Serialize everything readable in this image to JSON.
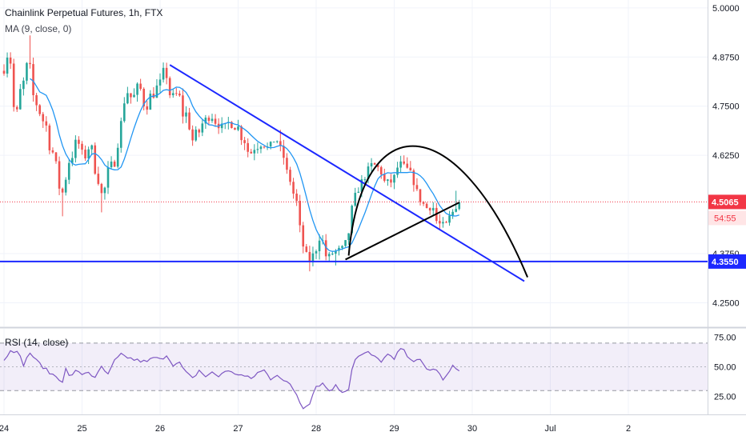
{
  "chart_data": {
    "type": "candlestick",
    "title": "Chainlink Perpetual Futures, 1h, FTX",
    "indicator_ma": "MA (9, close, 0)",
    "indicator_rsi": "RSI (14, close)",
    "price_axis": {
      "range": [
        4.19,
        5.02
      ],
      "ticks": [
        {
          "value": 5.0,
          "label": "5.0000"
        },
        {
          "value": 4.875,
          "label": "4.8750"
        },
        {
          "value": 4.75,
          "label": "4.7500"
        },
        {
          "value": 4.625,
          "label": "4.6250"
        },
        {
          "value": 4.375,
          "label": "4.3750"
        },
        {
          "value": 4.25,
          "label": "4.2500"
        }
      ]
    },
    "rsi_axis": {
      "range": [
        10,
        82
      ],
      "ticks": [
        {
          "value": 75,
          "label": "75.00"
        },
        {
          "value": 50,
          "label": "50.00"
        },
        {
          "value": 25,
          "label": "25.00"
        }
      ],
      "band": [
        30,
        70
      ]
    },
    "time_axis": {
      "ticks": [
        {
          "t": 0,
          "label": "24"
        },
        {
          "t": 24,
          "label": "25"
        },
        {
          "t": 48,
          "label": "26"
        },
        {
          "t": 72,
          "label": "27"
        },
        {
          "t": 96,
          "label": "28"
        },
        {
          "t": 120,
          "label": "29"
        },
        {
          "t": 144,
          "label": "30"
        },
        {
          "t": 168,
          "label": "Jul"
        },
        {
          "t": 192,
          "label": "2"
        }
      ]
    },
    "current_price": {
      "value": 4.5065,
      "label": "4.5065",
      "countdown": "54:55",
      "color": "#f23645"
    },
    "support_line": {
      "value": 4.355,
      "label": "4.3550",
      "color": "#1c28ff"
    },
    "anchors": [
      [
        0,
        4.84
      ],
      [
        2,
        4.89
      ],
      [
        4,
        4.72
      ],
      [
        6,
        4.8
      ],
      [
        8,
        4.86
      ],
      [
        10,
        4.76
      ],
      [
        13,
        4.71
      ],
      [
        15,
        4.64
      ],
      [
        17,
        4.59
      ],
      [
        18,
        4.5
      ],
      [
        19,
        4.56
      ],
      [
        21,
        4.62
      ],
      [
        23,
        4.66
      ],
      [
        25,
        4.62
      ],
      [
        27,
        4.65
      ],
      [
        29,
        4.58
      ],
      [
        30,
        4.55
      ],
      [
        31,
        4.5
      ],
      [
        32,
        4.58
      ],
      [
        34,
        4.6
      ],
      [
        36,
        4.67
      ],
      [
        37,
        4.74
      ],
      [
        38,
        4.79
      ],
      [
        40,
        4.77
      ],
      [
        42,
        4.8
      ],
      [
        44,
        4.75
      ],
      [
        46,
        4.78
      ],
      [
        48,
        4.8
      ],
      [
        50,
        4.84
      ],
      [
        52,
        4.77
      ],
      [
        54,
        4.78
      ],
      [
        56,
        4.72
      ],
      [
        57,
        4.74
      ],
      [
        58,
        4.66
      ],
      [
        60,
        4.68
      ],
      [
        62,
        4.71
      ],
      [
        64,
        4.73
      ],
      [
        66,
        4.71
      ],
      [
        68,
        4.69
      ],
      [
        70,
        4.71
      ],
      [
        72,
        4.7
      ],
      [
        74,
        4.67
      ],
      [
        76,
        4.63
      ],
      [
        78,
        4.65
      ],
      [
        80,
        4.66
      ],
      [
        82,
        4.64
      ],
      [
        84,
        4.67
      ],
      [
        86,
        4.63
      ],
      [
        88,
        4.57
      ],
      [
        90,
        4.52
      ],
      [
        92,
        4.42
      ],
      [
        93,
        4.37
      ],
      [
        94,
        4.36
      ],
      [
        96,
        4.37
      ],
      [
        97,
        4.41
      ],
      [
        98,
        4.43
      ],
      [
        99,
        4.38
      ],
      [
        100,
        4.36
      ],
      [
        102,
        4.38
      ],
      [
        104,
        4.38
      ],
      [
        106,
        4.4
      ],
      [
        107,
        4.46
      ],
      [
        108,
        4.51
      ],
      [
        110,
        4.55
      ],
      [
        112,
        4.58
      ],
      [
        114,
        4.6
      ],
      [
        116,
        4.59
      ],
      [
        118,
        4.55
      ],
      [
        120,
        4.56
      ],
      [
        122,
        4.6
      ],
      [
        124,
        4.59
      ],
      [
        126,
        4.57
      ],
      [
        128,
        4.52
      ],
      [
        129,
        4.51
      ],
      [
        130,
        4.49
      ],
      [
        132,
        4.5
      ],
      [
        134,
        4.45
      ],
      [
        136,
        4.44
      ],
      [
        138,
        4.47
      ],
      [
        139,
        4.49
      ],
      [
        140,
        4.51
      ]
    ],
    "rsi_anchors": [
      [
        0,
        55
      ],
      [
        2,
        65
      ],
      [
        4,
        62
      ],
      [
        5,
        58
      ],
      [
        6,
        52
      ],
      [
        8,
        62
      ],
      [
        10,
        55
      ],
      [
        12,
        50
      ],
      [
        14,
        45
      ],
      [
        16,
        42
      ],
      [
        18,
        38
      ],
      [
        19,
        48
      ],
      [
        20,
        42
      ],
      [
        22,
        46
      ],
      [
        24,
        44
      ],
      [
        26,
        46
      ],
      [
        28,
        40
      ],
      [
        30,
        50
      ],
      [
        32,
        43
      ],
      [
        34,
        55
      ],
      [
        36,
        60
      ],
      [
        38,
        58
      ],
      [
        40,
        56
      ],
      [
        42,
        55
      ],
      [
        44,
        54
      ],
      [
        46,
        58
      ],
      [
        48,
        56
      ],
      [
        50,
        60
      ],
      [
        52,
        52
      ],
      [
        54,
        53
      ],
      [
        56,
        45
      ],
      [
        58,
        40
      ],
      [
        60,
        47
      ],
      [
        62,
        42
      ],
      [
        64,
        45
      ],
      [
        66,
        42
      ],
      [
        68,
        47
      ],
      [
        70,
        45
      ],
      [
        72,
        44
      ],
      [
        74,
        42
      ],
      [
        76,
        40
      ],
      [
        78,
        45
      ],
      [
        80,
        47
      ],
      [
        82,
        40
      ],
      [
        84,
        44
      ],
      [
        86,
        38
      ],
      [
        88,
        35
      ],
      [
        90,
        27
      ],
      [
        91,
        20
      ],
      [
        92,
        16
      ],
      [
        94,
        20
      ],
      [
        96,
        34
      ],
      [
        98,
        36
      ],
      [
        100,
        30
      ],
      [
        102,
        34
      ],
      [
        104,
        29
      ],
      [
        106,
        32
      ],
      [
        107,
        48
      ],
      [
        108,
        57
      ],
      [
        110,
        60
      ],
      [
        112,
        62
      ],
      [
        114,
        58
      ],
      [
        116,
        55
      ],
      [
        118,
        60
      ],
      [
        120,
        56
      ],
      [
        122,
        66
      ],
      [
        124,
        60
      ],
      [
        126,
        55
      ],
      [
        128,
        55
      ],
      [
        130,
        48
      ],
      [
        132,
        48
      ],
      [
        134,
        45
      ],
      [
        135,
        38
      ],
      [
        136,
        42
      ],
      [
        138,
        50
      ],
      [
        140,
        48
      ]
    ],
    "colors": {
      "up": "#26a69a",
      "down": "#ef5350",
      "ma": "#2196f3",
      "rsi": "#7e57c2",
      "trendline": "#1c28ff",
      "pattern": "#000000"
    }
  }
}
